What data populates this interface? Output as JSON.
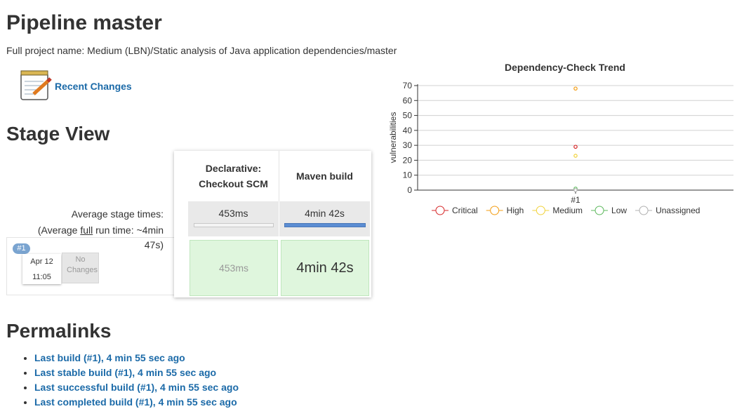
{
  "header": {
    "title": "Pipeline master",
    "full_name": "Full project name: Medium (LBN)/Static analysis of Java application dependencies/master"
  },
  "recent_changes": "Recent Changes",
  "stage_view": {
    "title": "Stage View",
    "average_label": "Average stage times:",
    "average_run": {
      "before": "(Average",
      "link": "full",
      "after": "run time: ~4min 47s)"
    },
    "stages": [
      {
        "name": "Declarative: Checkout SCM",
        "average": "453ms",
        "cell": "453ms"
      },
      {
        "name": "Maven build",
        "average": "4min 42s",
        "cell": "4min 42s"
      }
    ],
    "build": {
      "badge": "#1",
      "date": "Apr 12",
      "time": "11:05",
      "changes": "No Changes"
    }
  },
  "permalinks": {
    "title": "Permalinks",
    "items": [
      "Last build (#1), 4 min 55 sec ago",
      "Last stable build (#1), 4 min 55 sec ago",
      "Last successful build (#1), 4 min 55 sec ago",
      "Last completed build (#1), 4 min 55 sec ago"
    ]
  },
  "chart_data": {
    "type": "line",
    "title": "Dependency-Check Trend",
    "y_label": "vulnerabilities",
    "categories": [
      "#1"
    ],
    "series": [
      {
        "name": "Critical",
        "color": "#d62728",
        "values": [
          29
        ]
      },
      {
        "name": "High",
        "color": "#f39c12",
        "values": [
          68
        ]
      },
      {
        "name": "Medium",
        "color": "#f1d23a",
        "values": [
          23
        ]
      },
      {
        "name": "Low",
        "color": "#5cb85c",
        "values": [
          1
        ]
      },
      {
        "name": "Unassigned",
        "color": "#b0b0b0",
        "values": [
          0
        ]
      }
    ],
    "ylim": [
      0,
      70
    ],
    "yticks": [
      0,
      10,
      20,
      30,
      40,
      50,
      60,
      70
    ],
    "grid": true
  }
}
